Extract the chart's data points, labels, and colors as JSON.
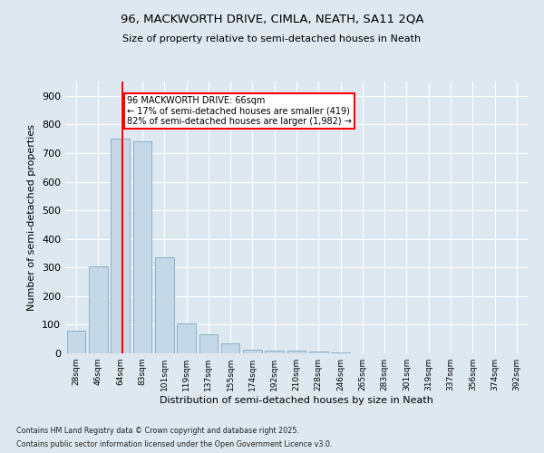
{
  "title1": "96, MACKWORTH DRIVE, CIMLA, NEATH, SA11 2QA",
  "title2": "Size of property relative to semi-detached houses in Neath",
  "xlabel": "Distribution of semi-detached houses by size in Neath",
  "ylabel": "Number of semi-detached properties",
  "categories": [
    "28sqm",
    "46sqm",
    "64sqm",
    "83sqm",
    "101sqm",
    "119sqm",
    "137sqm",
    "155sqm",
    "174sqm",
    "192sqm",
    "210sqm",
    "228sqm",
    "246sqm",
    "265sqm",
    "283sqm",
    "301sqm",
    "319sqm",
    "337sqm",
    "356sqm",
    "374sqm",
    "392sqm"
  ],
  "values": [
    80,
    305,
    750,
    740,
    335,
    105,
    68,
    35,
    12,
    10,
    10,
    5,
    2,
    0,
    0,
    0,
    0,
    0,
    0,
    0,
    0
  ],
  "bar_color": "#c5d8e8",
  "bar_edge_color": "#8ab0c8",
  "red_line_index": 2,
  "annotation_title": "96 MACKWORTH DRIVE: 66sqm",
  "annotation_line1": "← 17% of semi-detached houses are smaller (419)",
  "annotation_line2": "82% of semi-detached houses are larger (1,982) →",
  "ylim": [
    0,
    950
  ],
  "yticks": [
    0,
    100,
    200,
    300,
    400,
    500,
    600,
    700,
    800,
    900
  ],
  "background_color": "#dde8f0",
  "footnote1": "Contains HM Land Registry data © Crown copyright and database right 2025.",
  "footnote2": "Contains public sector information licensed under the Open Government Licence v3.0."
}
